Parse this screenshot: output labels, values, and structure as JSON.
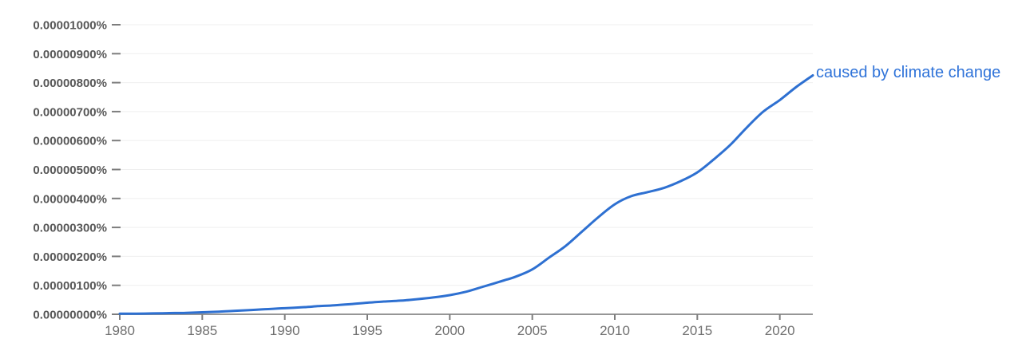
{
  "colors": {
    "series_line": "#2e70d1",
    "series_label": "#2f73d9",
    "axis_line": "#969696",
    "tick_mark": "#7d7d7d",
    "y_label_text": "#575757",
    "x_label_text": "#6f6f6f",
    "gridline": "#efefef",
    "background": "#ffffff"
  },
  "chart_data": {
    "type": "line",
    "title": "",
    "xlabel": "",
    "ylabel": "",
    "grid": true,
    "legend_position": "end-of-line",
    "xlim": [
      1980,
      2022
    ],
    "ylim": [
      0,
      1e-05
    ],
    "x_ticks": {
      "values": [
        1980,
        1985,
        1990,
        1995,
        2000,
        2005,
        2010,
        2015,
        2020
      ],
      "labels": [
        "1980",
        "1985",
        "1990",
        "1995",
        "2000",
        "2005",
        "2010",
        "2015",
        "2020"
      ]
    },
    "y_ticks": {
      "values": [
        0,
        1e-06,
        2e-06,
        3e-06,
        4e-06,
        5e-06,
        6e-06,
        7e-06,
        8e-06,
        9e-06,
        1e-05
      ],
      "labels": [
        "0.00000000%",
        "0.00000100%",
        "0.00000200%",
        "0.00000300%",
        "0.00000400%",
        "0.00000500%",
        "0.00000600%",
        "0.00000700%",
        "0.00000800%",
        "0.00000900%",
        "0.00001000%"
      ]
    },
    "series": [
      {
        "name": "caused by climate change",
        "color": "#2e70d1",
        "units": "percent of ngram corpus",
        "x": [
          1980,
          1981,
          1982,
          1983,
          1984,
          1985,
          1986,
          1987,
          1988,
          1989,
          1990,
          1991,
          1992,
          1993,
          1994,
          1995,
          1996,
          1997,
          1998,
          1999,
          2000,
          2001,
          2002,
          2003,
          2004,
          2005,
          2006,
          2007,
          2008,
          2009,
          2010,
          2011,
          2012,
          2013,
          2014,
          2015,
          2016,
          2017,
          2018,
          2019,
          2020,
          2021,
          2022
        ],
        "y": [
          2e-08,
          2e-08,
          3e-08,
          4e-08,
          5e-08,
          7e-08,
          9e-08,
          1.2e-07,
          1.5e-07,
          1.8e-07,
          2.1e-07,
          2.4e-07,
          2.8e-07,
          3.1e-07,
          3.5e-07,
          4e-07,
          4.4e-07,
          4.7e-07,
          5.2e-07,
          5.8e-07,
          6.6e-07,
          7.8e-07,
          9.5e-07,
          1.12e-06,
          1.3e-06,
          1.55e-06,
          1.95e-06,
          2.35e-06,
          2.85e-06,
          3.35e-06,
          3.8e-06,
          4.08e-06,
          4.22e-06,
          4.37e-06,
          4.6e-06,
          4.9e-06,
          5.35e-06,
          5.85e-06,
          6.45e-06,
          7e-06,
          7.4e-06,
          7.85e-06,
          8.25e-06
        ]
      }
    ]
  }
}
